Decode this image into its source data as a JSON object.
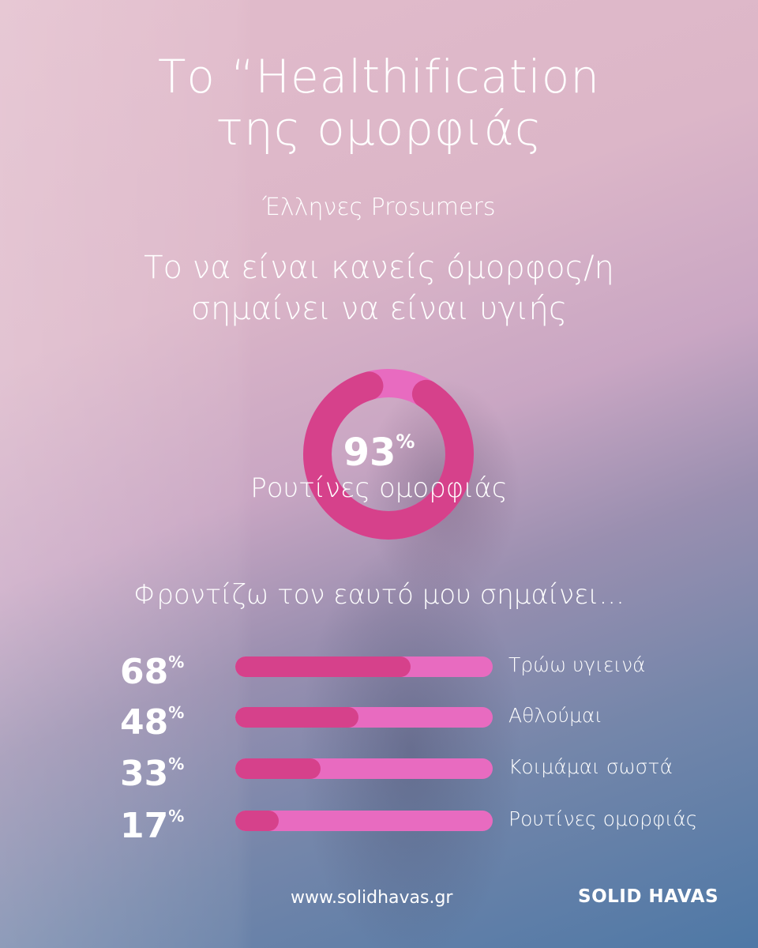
{
  "title_line1": "Το “Healthification",
  "title_line2": "της ομορφιάς",
  "subtitle": "Έλληνες Prosumers",
  "headline_line1": "Το να είναι κανείς όμορφος/η",
  "headline_line2": "σημαίνει να είναι υγιής",
  "section_title": "Φροντίζω τον εαυτό μου σημαίνει...",
  "footer": {
    "url": "www.solidhavas.gr",
    "logo": "SOLID HAVAS"
  },
  "colors": {
    "dark_pink": "#d6418b",
    "light_pink": "#e86bc0"
  },
  "chart_data": [
    {
      "type": "pie",
      "variant": "donut",
      "value": 93,
      "value_label": "93",
      "unit": "%",
      "label": "Ρουτίνες ομορφιάς"
    },
    {
      "type": "bar",
      "orientation": "horizontal",
      "xlim": [
        0,
        100
      ],
      "categories": [
        "Τρώω υγιεινά",
        "Αθλούμαι",
        "Κοιμάμαι σωστά",
        "Ρουτίνες ομορφιάς"
      ],
      "values": [
        68,
        48,
        33,
        17
      ],
      "value_labels": [
        "68",
        "48",
        "33",
        "17"
      ],
      "unit": "%"
    }
  ]
}
